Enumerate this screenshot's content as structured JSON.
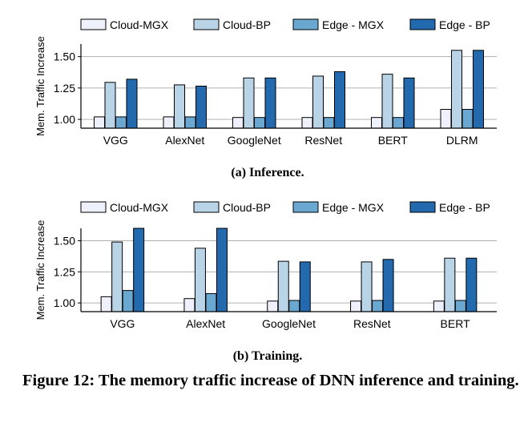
{
  "colors": {
    "Cloud-MGX": "#eef1fb",
    "Cloud-BP": "#b9d4e6",
    "Edge - MGX": "#6aa8d1",
    "Edge - BP": "#2269ad",
    "grid": "#b0b0b0"
  },
  "caption": "Figure 12: The memory traffic increase of DNN inference and training.",
  "chart_data": [
    {
      "type": "bar",
      "subcaption": "(a) Inference.",
      "ylabel": "Mem. Traffic Increase",
      "ylim": [
        0.93,
        1.6
      ],
      "yticks": [
        "1.00",
        "1.25",
        "1.50"
      ],
      "grid": true,
      "legend": "top",
      "categories": [
        "VGG",
        "AlexNet",
        "GoogleNet",
        "ResNet",
        "BERT",
        "DLRM"
      ],
      "series": [
        {
          "name": "Cloud-MGX",
          "values": [
            1.02,
            1.02,
            1.015,
            1.015,
            1.015,
            1.08
          ]
        },
        {
          "name": "Cloud-BP",
          "values": [
            1.295,
            1.275,
            1.33,
            1.345,
            1.36,
            1.55
          ]
        },
        {
          "name": "Edge - MGX",
          "values": [
            1.02,
            1.02,
            1.015,
            1.015,
            1.015,
            1.08
          ]
        },
        {
          "name": "Edge - BP",
          "values": [
            1.32,
            1.265,
            1.33,
            1.38,
            1.33,
            1.55
          ]
        }
      ]
    },
    {
      "type": "bar",
      "subcaption": "(b) Training.",
      "ylabel": "Mem. Traffic Increase",
      "ylim": [
        0.93,
        1.6
      ],
      "yticks": [
        "1.00",
        "1.25",
        "1.50"
      ],
      "grid": true,
      "legend": "top",
      "categories": [
        "VGG",
        "AlexNet",
        "GoogleNet",
        "ResNet",
        "BERT"
      ],
      "series": [
        {
          "name": "Cloud-MGX",
          "values": [
            1.05,
            1.035,
            1.015,
            1.015,
            1.015
          ]
        },
        {
          "name": "Cloud-BP",
          "values": [
            1.49,
            1.44,
            1.335,
            1.33,
            1.36
          ]
        },
        {
          "name": "Edge - MGX",
          "values": [
            1.1,
            1.075,
            1.02,
            1.02,
            1.02
          ]
        },
        {
          "name": "Edge - BP",
          "values": [
            1.6,
            1.6,
            1.33,
            1.35,
            1.36
          ]
        }
      ]
    }
  ]
}
